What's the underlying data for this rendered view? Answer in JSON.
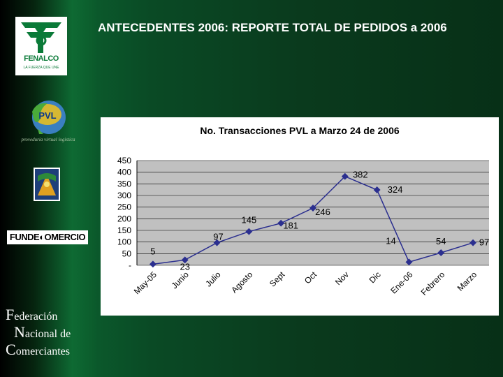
{
  "slide": {
    "title": "ANTECEDENTES 2006: REPORTE TOTAL DE PEDIDOS a 2006"
  },
  "sidebar": {
    "fenalco_word": "FENALCO",
    "fenalco_slogan": "LA FUERZA QUE UNE",
    "pvl_caption": "proveduria virtual logistica",
    "pvl_mark": "PVL",
    "fundecomercio": "FUNDE◐OMERCIO",
    "org_line1_cap": "F",
    "org_line1_rest": "ederación",
    "org_line2_cap": "N",
    "org_line2_rest": "acional de",
    "org_line3_cap": "C",
    "org_line3_rest": "omerciantes"
  },
  "colors": {
    "line": "#2b2f8f",
    "plot_bg": "#c0c0c0",
    "text": "#000000"
  },
  "chart_data": {
    "type": "line",
    "title": "No. Transacciones PVL a Marzo 24 de 2006",
    "categories": [
      "May-05",
      "Junio",
      "Julio",
      "Agosto",
      "Sept",
      "Oct",
      "Nov",
      "Dic",
      "Ene-06",
      "Febrero",
      "Marzo"
    ],
    "values": [
      5,
      23,
      97,
      145,
      181,
      246,
      382,
      324,
      14,
      54,
      97
    ],
    "y_ticks": [
      "-",
      "50",
      "100",
      "150",
      "200",
      "250",
      "300",
      "350",
      "400",
      "450"
    ],
    "ylim": [
      0,
      450
    ],
    "grid": true,
    "legend": "none",
    "xlabel": "",
    "ylabel": ""
  }
}
